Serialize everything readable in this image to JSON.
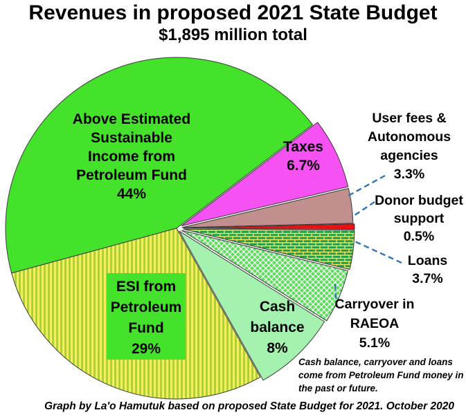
{
  "header": {
    "title": "Revenues in proposed 2021 State Budget",
    "subtitle": "$1,895 million total"
  },
  "chart_data": {
    "type": "pie",
    "title": "Revenues in proposed 2021 State Budget",
    "subtitle": "$1,895 million total",
    "total": "$1,895 million",
    "units": "percent of total revenues",
    "direction": "clockwise",
    "start_angle_deg": 52.7,
    "legend_position": "none (labels on/beside slices)",
    "colors": {
      "bright_green": "#45E22C",
      "magenta": "#F551F3",
      "rosy_brown": "#C28F8F",
      "red": "#EE1010",
      "brick_green": "#1B9E4E",
      "brick_mortar": "#F2E45E",
      "diamond_green": "#5CE05C",
      "stripe_yellow": "#F2F05E",
      "stripe_green": "#A6D437",
      "pale_green": "#A5F2B0",
      "leader_blue": "#2E75B6",
      "slice_border": "#3a3a3a"
    },
    "slices": [
      {
        "name": "Taxes",
        "value": 6.7,
        "fill": "#F551F3",
        "pattern": "solid",
        "explode": 8,
        "label_text": "Taxes\n6.7%"
      },
      {
        "name": "User fees & Autonomous agencies",
        "value": 3.3,
        "fill": "#C28F8F",
        "pattern": "solid",
        "explode": 8,
        "label_text": "User fees &\nAutonomous\nagencies\n3.3%"
      },
      {
        "name": "Donor budget support",
        "value": 0.5,
        "fill": "#EE1010",
        "pattern": "solid",
        "explode": 10,
        "label_text": "Donor budget\nsupport\n0.5%"
      },
      {
        "name": "Loans",
        "value": 3.7,
        "fill": "bricks",
        "pattern": "green bricks with yellow mortar",
        "explode": 10,
        "label_text": "Loans\n3.7%"
      },
      {
        "name": "Carryover in RAEOA",
        "value": 5.1,
        "fill": "diamonds",
        "pattern": "green diamonds on white",
        "explode": 8,
        "label_text": "Carryover in\nRAEOA\n5.1%"
      },
      {
        "name": "Cash balance",
        "value": 8,
        "fill": "#A5F2B0",
        "pattern": "solid",
        "explode": 6,
        "label_text": "Cash\nbalance\n8%"
      },
      {
        "name": "ESI from Petroleum Fund",
        "value": 29,
        "fill": "vstripes",
        "pattern": "yellow-green vertical stripes",
        "explode": 0,
        "label_text": "ESI from\nPetroleum\nFund\n29%"
      },
      {
        "name": "Above Estimated Sustainable Income from Petroleum Fund",
        "value": 44,
        "fill": "#45E22C",
        "pattern": "solid",
        "explode": 0,
        "label_text": "Above Estimated\nSustainable\nIncome from\nPetroleum Fund\n44%"
      }
    ],
    "leader_lines": [
      {
        "name": "user-fees-leader",
        "from": [
          556,
          254
        ],
        "to": [
          503,
          283
        ]
      },
      {
        "name": "donor-leader",
        "from": [
          541,
          292
        ],
        "to": [
          508,
          314
        ]
      },
      {
        "name": "loans-leader",
        "from": [
          580,
          380
        ],
        "to": [
          510,
          348
        ]
      },
      {
        "name": "carryover-leader",
        "from": [
          484,
          411
        ],
        "to": [
          486,
          444
        ]
      }
    ]
  },
  "annotations": {
    "note": "Cash balance, carryover and\nloans come from Petroleum Fund\nmoney in the past or future.",
    "caption": "Graph by La'o Hamutuk based on proposed State Budget for 2021. October 2020"
  }
}
